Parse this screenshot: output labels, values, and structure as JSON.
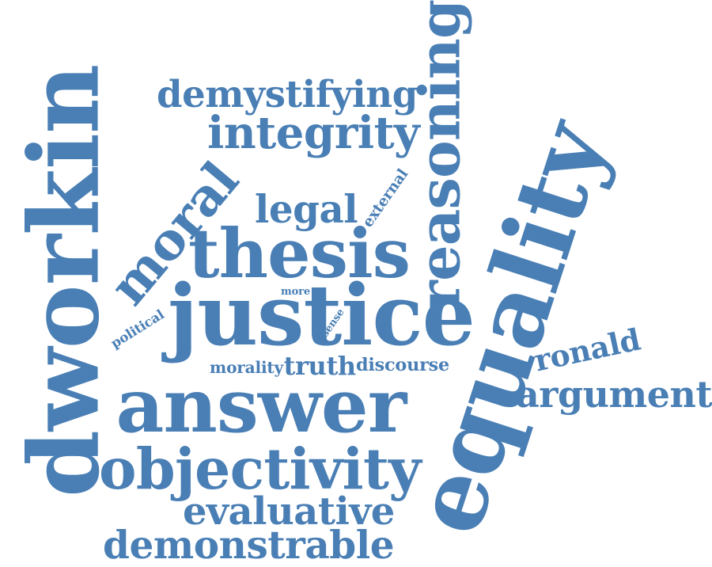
{
  "accent_color": "#4a7fb5",
  "words": [
    {
      "key": "answer",
      "text": "answer"
    },
    {
      "key": "justice",
      "text": "justice"
    },
    {
      "key": "equality",
      "text": "equality"
    },
    {
      "key": "dworkin",
      "text": "dworkin"
    },
    {
      "key": "thesis",
      "text": "thesis"
    },
    {
      "key": "reasoning",
      "text": "reasoning"
    },
    {
      "key": "objectivity",
      "text": "objectivity"
    },
    {
      "key": "moral",
      "text": "moral"
    },
    {
      "key": "integrity",
      "text": "integrity"
    },
    {
      "key": "demystifying",
      "text": "demystifying"
    },
    {
      "key": "demonstrable",
      "text": "demonstrable"
    },
    {
      "key": "evaluative",
      "text": "evaluative"
    },
    {
      "key": "argument",
      "text": "argument"
    },
    {
      "key": "ronald",
      "text": "ronald"
    },
    {
      "key": "legal",
      "text": "legal"
    },
    {
      "key": "truth",
      "text": "truth"
    },
    {
      "key": "discourse",
      "text": "discourse"
    },
    {
      "key": "morality",
      "text": "morality"
    },
    {
      "key": "political",
      "text": "political"
    },
    {
      "key": "external",
      "text": "external"
    },
    {
      "key": "sense",
      "text": "sense"
    },
    {
      "key": "more",
      "text": "more"
    }
  ]
}
